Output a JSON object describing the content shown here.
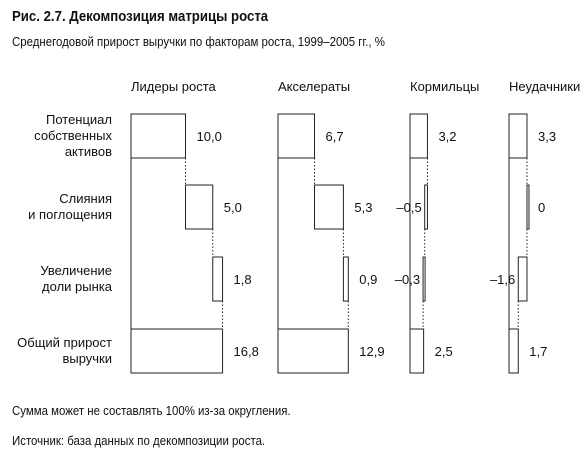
{
  "title": "Рис. 2.7. Декомпозиция матрицы роста",
  "subtitle": "Среднегодовой прирост выручки по факторам роста, 1999–2005 гг., %",
  "notes": [
    "Сумма может не составлять 100% из-за округления.",
    "Источник: база данных по декомпозиции роста."
  ],
  "chart_data": {
    "type": "bar",
    "subtype": "waterfall",
    "categories": [
      [
        "Потенциал",
        "собственных",
        "активов"
      ],
      [
        "Слияния",
        "и поглощения"
      ],
      [
        "Увеличение",
        "доли рынка"
      ],
      [
        "Общий прирост",
        "выручки"
      ]
    ],
    "series": [
      {
        "name": "Лидеры роста",
        "values": [
          10.0,
          5.0,
          1.8,
          16.8
        ],
        "labels": [
          "10,0",
          "5,0",
          "1,8",
          "16,8"
        ]
      },
      {
        "name": "Акселераты",
        "values": [
          6.7,
          5.3,
          0.9,
          12.9
        ],
        "labels": [
          "6,7",
          "5,3",
          "0,9",
          "12,9"
        ]
      },
      {
        "name": "Кормильцы",
        "values": [
          3.2,
          -0.5,
          -0.3,
          2.5
        ],
        "labels": [
          "3,2",
          "–0,5",
          "–0,3",
          "2,5"
        ]
      },
      {
        "name": "Неудачники",
        "values": [
          3.3,
          0,
          -1.6,
          1.7
        ],
        "labels": [
          "3,3",
          "0",
          "–1,6",
          "1,7"
        ]
      }
    ],
    "legend": "none",
    "grid": false
  }
}
